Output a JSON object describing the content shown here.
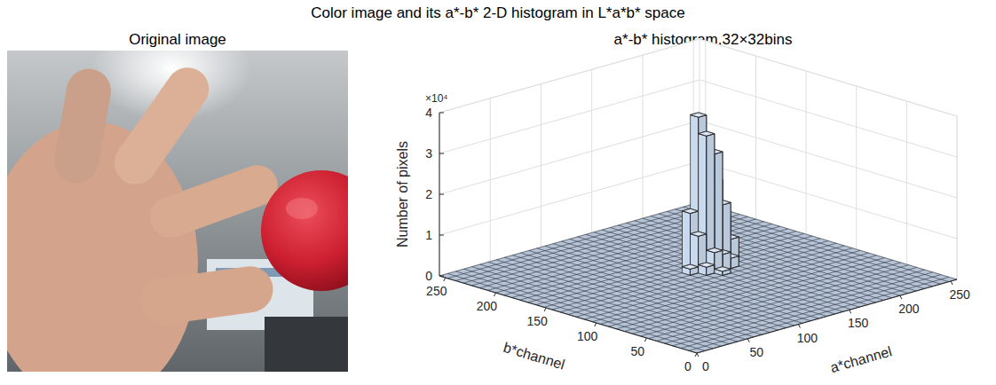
{
  "figure_title": "Color image and its a*-b* 2-D histogram in L*a*b* space",
  "image_panel": {
    "title": "Original image"
  },
  "chart_data": {
    "type": "bar3d",
    "title": "a*-b* histogram,32×32bins",
    "x_label": "a*channel",
    "y_label": "b*channel",
    "z_label": "Number of pixels",
    "z_exponent_label": "×10⁴",
    "xlim": [
      0,
      256
    ],
    "ylim": [
      0,
      256
    ],
    "zlim": [
      0,
      40000
    ],
    "xticks": [
      0,
      50,
      100,
      150,
      200,
      250
    ],
    "yticks": [
      0,
      50,
      100,
      150,
      200,
      250
    ],
    "zticks": [
      0,
      {
        "value": 10000,
        "label": "1"
      },
      {
        "value": 20000,
        "label": "2"
      },
      {
        "value": 30000,
        "label": "3"
      },
      {
        "value": 40000,
        "label": "4"
      }
    ],
    "bins_per_axis": 32,
    "grid": true,
    "color": "#c9d9ee",
    "cells": [
      {
        "a": 136,
        "b": 128,
        "count": 2000
      },
      {
        "a": 136,
        "b": 136,
        "count": 9000
      },
      {
        "a": 136,
        "b": 144,
        "count": 14000
      },
      {
        "a": 144,
        "b": 128,
        "count": 5000
      },
      {
        "a": 144,
        "b": 136,
        "count": 33000
      },
      {
        "a": 144,
        "b": 144,
        "count": 37000
      },
      {
        "a": 144,
        "b": 152,
        "count": 12000
      },
      {
        "a": 152,
        "b": 136,
        "count": 28000
      },
      {
        "a": 152,
        "b": 144,
        "count": 25000
      },
      {
        "a": 152,
        "b": 152,
        "count": 8000
      },
      {
        "a": 160,
        "b": 136,
        "count": 15000
      },
      {
        "a": 160,
        "b": 144,
        "count": 20000
      },
      {
        "a": 160,
        "b": 152,
        "count": 5000
      },
      {
        "a": 168,
        "b": 144,
        "count": 10000
      },
      {
        "a": 168,
        "b": 136,
        "count": 6000
      },
      {
        "a": 176,
        "b": 144,
        "count": 3000
      },
      {
        "a": 128,
        "b": 136,
        "count": 1500
      },
      {
        "a": 144,
        "b": 120,
        "count": 1000
      },
      {
        "a": 152,
        "b": 128,
        "count": 4000
      },
      {
        "a": 160,
        "b": 128,
        "count": 2500
      }
    ]
  }
}
